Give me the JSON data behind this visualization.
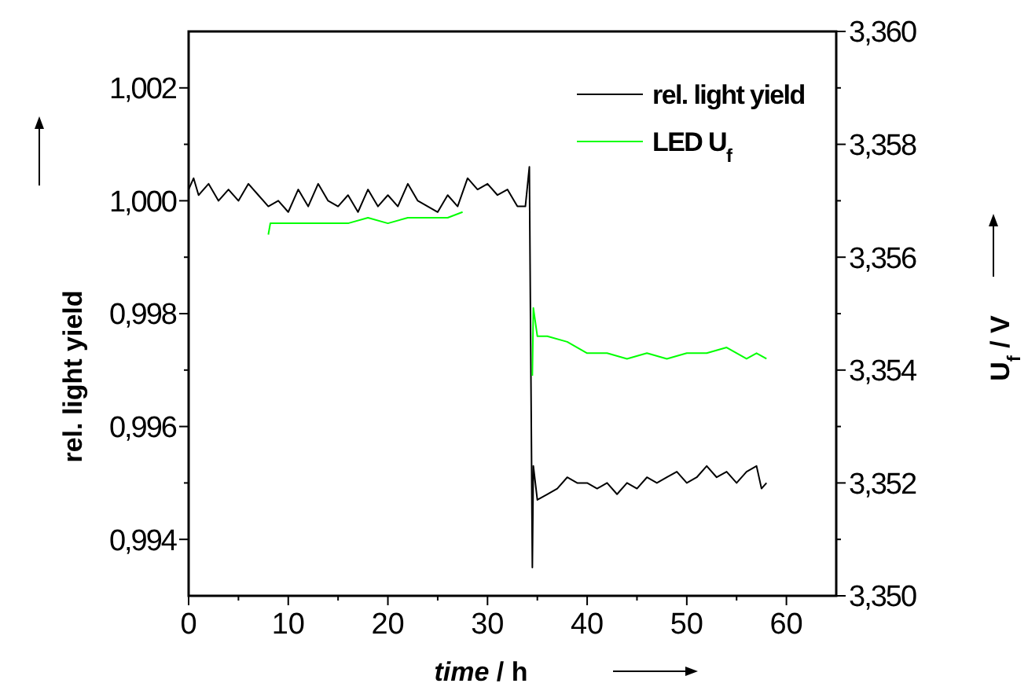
{
  "chart_data": {
    "type": "line",
    "xlabel": "time / h",
    "ylabel": "rel. light yield",
    "y2label": "U$_{f}$ / V",
    "legend": "top right",
    "grid": false,
    "marker": "none",
    "line_style": "solid",
    "xlim": [
      0,
      65
    ],
    "xticks": [
      0,
      {
        "value": 5,
        "label": null
      },
      10,
      {
        "value": 15,
        "label": null
      },
      20,
      {
        "value": 25,
        "label": null
      },
      30,
      {
        "value": 35,
        "label": null
      },
      40,
      {
        "value": 45,
        "label": null
      },
      50,
      {
        "value": 55,
        "label": null
      },
      60
    ],
    "ylim": [
      0.993,
      1.003
    ],
    "yticks": [
      {
        "value": 0.994,
        "label": "0,994"
      },
      {
        "value": 0.995,
        "label": null
      },
      {
        "value": 0.996,
        "label": "0,996"
      },
      {
        "value": 0.997,
        "label": null
      },
      {
        "value": 0.998,
        "label": "0,998"
      },
      {
        "value": 0.999,
        "label": null
      },
      {
        "value": 1.0,
        "label": "1,000"
      },
      {
        "value": 1.001,
        "label": null
      },
      {
        "value": 1.002,
        "label": "1,002"
      }
    ],
    "y2lim": [
      3.35,
      3.36
    ],
    "y2ticks": [
      {
        "value": 3.35,
        "label": "3,350"
      },
      {
        "value": 3.351,
        "label": null
      },
      {
        "value": 3.352,
        "label": "3,352"
      },
      {
        "value": 3.353,
        "label": null
      },
      {
        "value": 3.354,
        "label": "3,354"
      },
      {
        "value": 3.355,
        "label": null
      },
      {
        "value": 3.356,
        "label": "3,356"
      },
      {
        "value": 3.357,
        "label": null
      },
      {
        "value": 3.358,
        "label": "3,358"
      },
      {
        "value": 3.359,
        "label": null
      },
      {
        "value": 3.36,
        "label": "3,360"
      }
    ],
    "series": [
      {
        "name": "rel. light yield",
        "color": "#000000",
        "x": [
          0,
          0.5,
          1,
          2,
          3,
          4,
          5,
          6,
          7,
          8,
          9,
          10,
          11,
          12,
          13,
          14,
          15,
          16,
          17,
          18,
          19,
          20,
          21,
          22,
          23,
          24,
          25,
          26,
          27,
          28,
          29,
          30,
          31,
          32,
          33,
          33.8,
          34.2,
          34.5,
          34.6,
          35,
          36,
          37,
          38,
          39,
          40,
          41,
          42,
          43,
          44,
          45,
          46,
          47,
          48,
          49,
          50,
          51,
          52,
          53,
          54,
          55,
          56,
          57,
          57.5,
          58
        ],
        "values": [
          1.0002,
          1.0004,
          1.0001,
          1.0003,
          1.0,
          1.0002,
          1.0,
          1.0003,
          1.0001,
          0.9999,
          1.0,
          0.9998,
          1.0002,
          0.9999,
          1.0003,
          1.0,
          0.9999,
          1.0001,
          0.9998,
          1.0002,
          0.9999,
          1.0001,
          0.9999,
          1.0003,
          1.0,
          0.9999,
          0.9998,
          1.0001,
          0.9999,
          1.0004,
          1.0002,
          1.0003,
          1.0001,
          1.0002,
          0.9999,
          0.9999,
          1.0006,
          0.9935,
          0.9953,
          0.9947,
          0.9948,
          0.9949,
          0.9951,
          0.995,
          0.995,
          0.9949,
          0.995,
          0.9948,
          0.995,
          0.9949,
          0.9951,
          0.995,
          0.9951,
          0.9952,
          0.995,
          0.9951,
          0.9953,
          0.9951,
          0.9952,
          0.995,
          0.9952,
          0.9953,
          0.9949,
          0.995
        ]
      },
      {
        "name": "LED U$_{f}$",
        "color": "#00ff00",
        "axis": "y2",
        "x": [
          8,
          8.2,
          10,
          12,
          14,
          16,
          18,
          20,
          22,
          24,
          26,
          27.5,
          30,
          34.5,
          34.6,
          35,
          36,
          38,
          40,
          42,
          44,
          46,
          48,
          50,
          52,
          54,
          56,
          57,
          58
        ],
        "values": [
          3.3564,
          3.3566,
          3.3566,
          3.3566,
          3.3566,
          3.3566,
          3.3567,
          3.3566,
          3.3567,
          3.3567,
          3.3567,
          3.3568,
          null,
          3.3539,
          3.3551,
          3.3546,
          3.3546,
          3.3545,
          3.3543,
          3.3543,
          3.3542,
          3.3543,
          3.3542,
          3.3543,
          3.3543,
          3.3544,
          3.3542,
          3.3543,
          3.3542
        ]
      }
    ]
  }
}
